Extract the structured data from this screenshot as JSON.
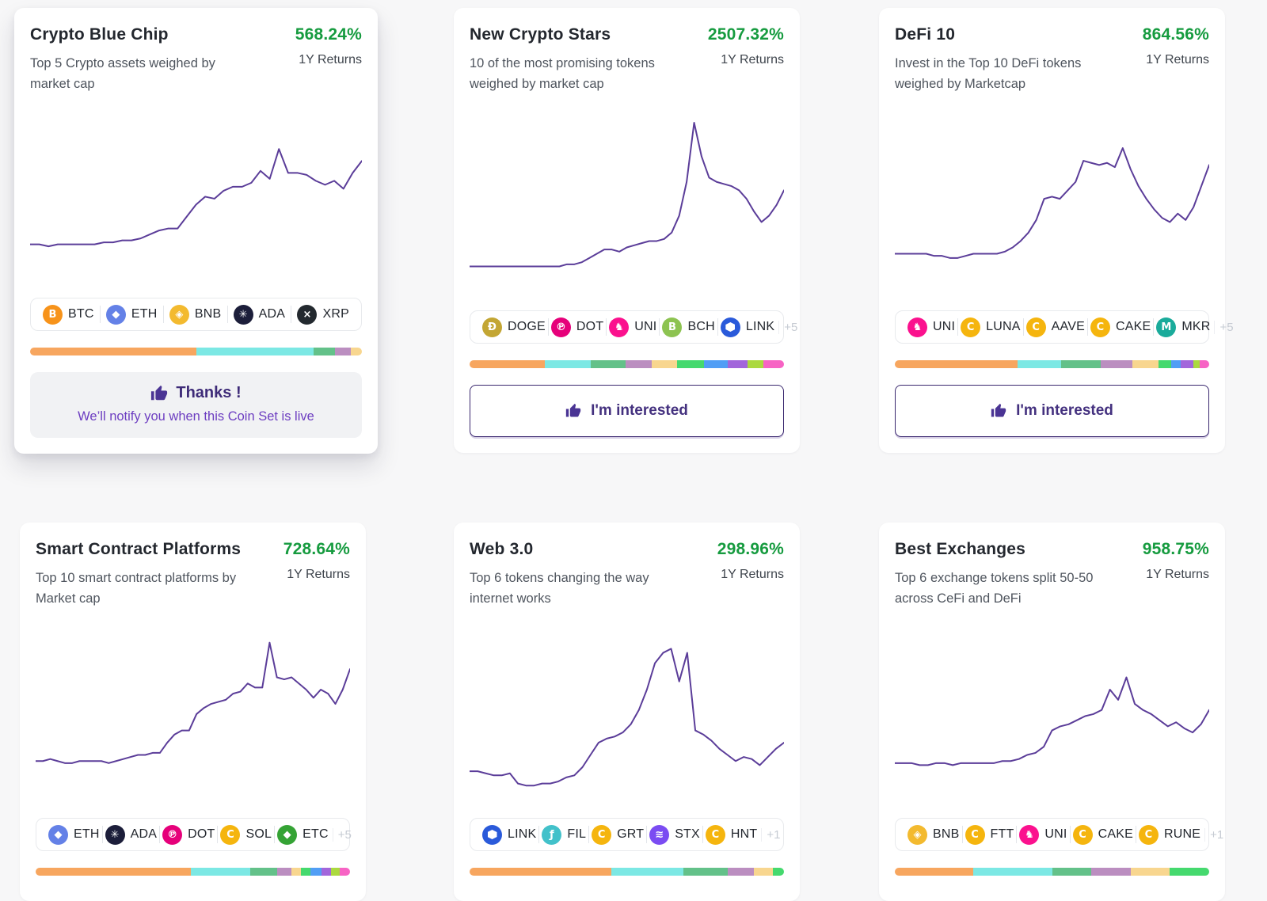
{
  "page": {
    "background": "#f7f7f8",
    "accent_purple": "#44317f",
    "returns_green": "#169b3f",
    "spark_color": "#5b3d99"
  },
  "token_icons": {
    "BTC": {
      "color": "#F7931A",
      "glyph": "B"
    },
    "ETH": {
      "color": "#6481E7",
      "glyph": "◆"
    },
    "BNB": {
      "color": "#F3BA2F",
      "glyph": "◈"
    },
    "ADA": {
      "color": "#1C1E3A",
      "glyph": "✳"
    },
    "XRP": {
      "color": "#23292F",
      "glyph": "×"
    },
    "DOGE": {
      "color": "#C3A634",
      "glyph": "Đ"
    },
    "DOT": {
      "color": "#E6007A",
      "glyph": "℗"
    },
    "UNI": {
      "color": "#FB118E",
      "glyph": "♞"
    },
    "BCH": {
      "color": "#8DC351",
      "glyph": "B"
    },
    "LINK": {
      "color": "#2A5ADA",
      "glyph": "HEX"
    },
    "LUNA": {
      "color": "#F5B50E",
      "glyph": "C"
    },
    "AAVE": {
      "color": "#F5B50E",
      "glyph": "C"
    },
    "CAKE": {
      "color": "#F5B50E",
      "glyph": "C"
    },
    "MKR": {
      "color": "#1AAB9B",
      "glyph": "M"
    },
    "SOL": {
      "color": "#F5B50E",
      "glyph": "C"
    },
    "ETC": {
      "color": "#35A335",
      "glyph": "◆"
    },
    "FIL": {
      "color": "#42C1CA",
      "glyph": "ƒ"
    },
    "GRT": {
      "color": "#F5B50E",
      "glyph": "C"
    },
    "STX": {
      "color": "#7B4CF2",
      "glyph": "≋"
    },
    "HNT": {
      "color": "#F5B50E",
      "glyph": "C"
    },
    "FTT": {
      "color": "#F5B50E",
      "glyph": "C"
    },
    "RUNE": {
      "color": "#F5B50E",
      "glyph": "C"
    }
  },
  "cards": [
    {
      "title": "Crypto Blue Chip",
      "description": "Top 5 Crypto assets weighed by market cap",
      "returns": "568.24%",
      "returns_label": "1Y Returns",
      "tokens": [
        "BTC",
        "ETH",
        "BNB",
        "ADA",
        "XRP"
      ],
      "more": "",
      "footer_title": "Thanks !",
      "footer_note": "We’ll notify you when this Coin Set is live",
      "allocation": [
        {
          "color": "#F7A65F",
          "pct": 50
        },
        {
          "color": "#7CE8E4",
          "pct": 35.5
        },
        {
          "color": "#63C189",
          "pct": 6.5
        },
        {
          "color": "#BB8EC0",
          "pct": 4.7
        },
        {
          "color": "#F8D68F",
          "pct": 3.3
        }
      ],
      "spark": [
        26,
        26,
        25,
        26,
        26,
        26,
        26,
        26,
        27,
        27,
        28,
        28,
        29,
        31,
        33,
        34,
        34,
        40,
        46,
        50,
        49,
        53,
        55,
        55,
        57,
        63,
        59,
        74,
        62,
        62,
        61,
        58,
        56,
        58,
        54,
        62,
        68
      ]
    },
    {
      "title": "New Crypto Stars",
      "description": "10 of the most promising tokens weighed by market cap",
      "returns": "2507.32%",
      "returns_label": "1Y Returns",
      "tokens": [
        "DOGE",
        "DOT",
        "UNI",
        "BCH",
        "LINK"
      ],
      "more": "+5",
      "button_label": "I'm interested",
      "allocation": [
        {
          "color": "#F7A65F",
          "pct": 24
        },
        {
          "color": "#7CE8E4",
          "pct": 14.5
        },
        {
          "color": "#63C189",
          "pct": 11
        },
        {
          "color": "#BB8EC0",
          "pct": 8.5
        },
        {
          "color": "#F8D68F",
          "pct": 8
        },
        {
          "color": "#45D96E",
          "pct": 8.5
        },
        {
          "color": "#519EF5",
          "pct": 7.5
        },
        {
          "color": "#A266DB",
          "pct": 6.5
        },
        {
          "color": "#ABD93F",
          "pct": 5
        },
        {
          "color": "#F763C4",
          "pct": 6.5
        }
      ],
      "spark": [
        20,
        20,
        20,
        20,
        20,
        20,
        20,
        20,
        20,
        20,
        20,
        20,
        20,
        21,
        21,
        22,
        24,
        26,
        28,
        28,
        27,
        29,
        30,
        31,
        32,
        32,
        33,
        36,
        44,
        60,
        88,
        72,
        62,
        60,
        59,
        58,
        56,
        52,
        46,
        41,
        44,
        49,
        56
      ]
    },
    {
      "title": "DeFi 10",
      "description": "Invest in the Top 10 DeFi tokens weighed by Marketcap",
      "returns": "864.56%",
      "returns_label": "1Y Returns",
      "tokens": [
        "UNI",
        "LUNA",
        "AAVE",
        "CAKE",
        "MKR"
      ],
      "more": "+5",
      "button_label": "I'm interested",
      "allocation": [
        {
          "color": "#F7A65F",
          "pct": 39
        },
        {
          "color": "#7CE8E4",
          "pct": 14
        },
        {
          "color": "#63C189",
          "pct": 12.5
        },
        {
          "color": "#BB8EC0",
          "pct": 10
        },
        {
          "color": "#F8D68F",
          "pct": 8.5
        },
        {
          "color": "#45D96E",
          "pct": 4
        },
        {
          "color": "#519EF5",
          "pct": 3
        },
        {
          "color": "#A266DB",
          "pct": 4
        },
        {
          "color": "#ABD93F",
          "pct": 2
        },
        {
          "color": "#F763C4",
          "pct": 3
        }
      ],
      "spark": [
        26,
        26,
        26,
        26,
        26,
        25,
        25,
        24,
        24,
        25,
        26,
        26,
        26,
        26,
        27,
        29,
        32,
        36,
        42,
        52,
        53,
        52,
        56,
        60,
        70,
        69,
        68,
        69,
        67,
        76,
        66,
        58,
        52,
        47,
        43,
        41,
        45,
        42,
        48,
        58,
        68
      ]
    },
    {
      "title": "Smart Contract Platforms",
      "description": "Top 10 smart contract platforms by Market cap",
      "returns": "728.64%",
      "returns_label": "1Y Returns",
      "tokens": [
        "ETH",
        "ADA",
        "DOT",
        "SOL",
        "ETC"
      ],
      "more": "+5",
      "allocation": [
        {
          "color": "#F7A65F",
          "pct": 49
        },
        {
          "color": "#7CE8E4",
          "pct": 19
        },
        {
          "color": "#63C189",
          "pct": 8.5
        },
        {
          "color": "#BB8EC0",
          "pct": 4.5
        },
        {
          "color": "#F8D68F",
          "pct": 3
        },
        {
          "color": "#45D96E",
          "pct": 3
        },
        {
          "color": "#519EF5",
          "pct": 3.5
        },
        {
          "color": "#A266DB",
          "pct": 3
        },
        {
          "color": "#ABD93F",
          "pct": 2.7
        },
        {
          "color": "#F763C4",
          "pct": 3.3
        }
      ],
      "spark": [
        27,
        27,
        28,
        27,
        26,
        26,
        27,
        27,
        27,
        27,
        26,
        27,
        28,
        29,
        30,
        30,
        31,
        31,
        36,
        40,
        42,
        42,
        50,
        53,
        55,
        56,
        57,
        60,
        61,
        65,
        63,
        63,
        85,
        68,
        67,
        68,
        65,
        62,
        58,
        62,
        60,
        55,
        62,
        72
      ]
    },
    {
      "title": "Web 3.0",
      "description": "Top 6 tokens changing the way internet works",
      "returns": "298.96%",
      "returns_label": "1Y Returns",
      "tokens": [
        "LINK",
        "FIL",
        "GRT",
        "STX",
        "HNT"
      ],
      "more": "+1",
      "allocation": [
        {
          "color": "#F7A65F",
          "pct": 45
        },
        {
          "color": "#7CE8E4",
          "pct": 23
        },
        {
          "color": "#63C189",
          "pct": 14
        },
        {
          "color": "#BB8EC0",
          "pct": 8.5
        },
        {
          "color": "#F8D68F",
          "pct": 6
        },
        {
          "color": "#45D96E",
          "pct": 3.5
        }
      ],
      "spark": [
        22,
        22,
        21,
        20,
        20,
        21,
        16,
        15,
        15,
        16,
        16,
        17,
        19,
        20,
        24,
        30,
        36,
        38,
        39,
        41,
        45,
        52,
        62,
        75,
        80,
        82,
        66,
        80,
        42,
        40,
        37,
        33,
        30,
        27,
        29,
        28,
        25,
        29,
        33,
        36
      ]
    },
    {
      "title": "Best Exchanges",
      "description": "Top 6 exchange tokens split 50-50 across CeFi and DeFi",
      "returns": "958.75%",
      "returns_label": "1Y Returns",
      "tokens": [
        "BNB",
        "FTT",
        "UNI",
        "CAKE",
        "RUNE"
      ],
      "more": "+1",
      "allocation": [
        {
          "color": "#F7A65F",
          "pct": 25
        },
        {
          "color": "#7CE8E4",
          "pct": 25
        },
        {
          "color": "#63C189",
          "pct": 12.5
        },
        {
          "color": "#BB8EC0",
          "pct": 12.5
        },
        {
          "color": "#F8D68F",
          "pct": 12.5
        },
        {
          "color": "#45D96E",
          "pct": 12.5
        }
      ],
      "spark": [
        26,
        26,
        26,
        25,
        25,
        26,
        26,
        25,
        26,
        26,
        26,
        26,
        26,
        27,
        27,
        28,
        30,
        31,
        34,
        42,
        44,
        45,
        47,
        49,
        50,
        52,
        62,
        57,
        68,
        55,
        52,
        50,
        47,
        44,
        46,
        43,
        41,
        45,
        52
      ]
    }
  ]
}
